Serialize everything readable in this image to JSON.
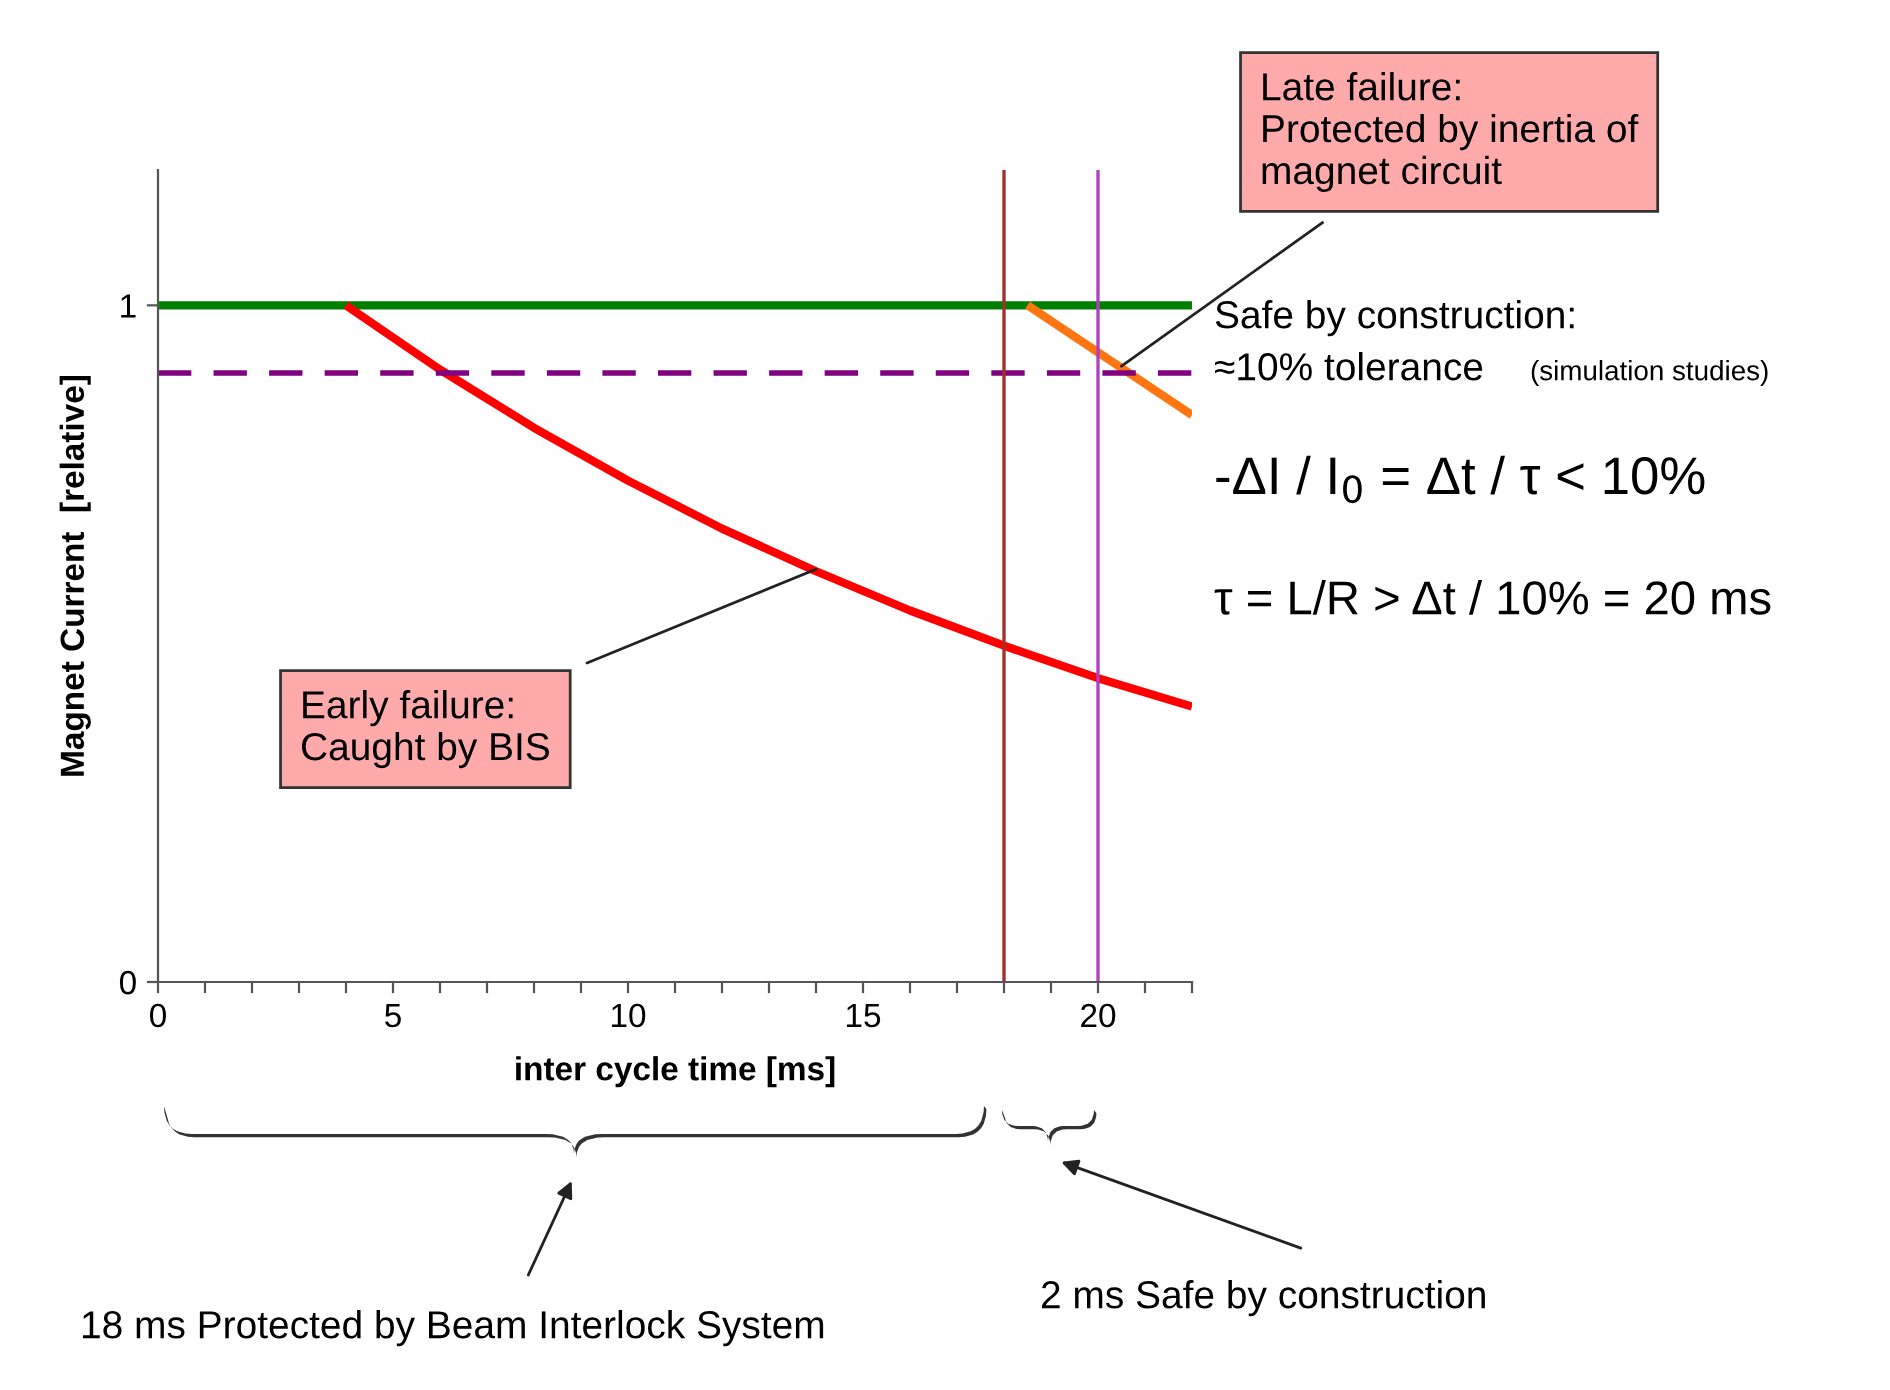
{
  "chart_data": {
    "type": "line",
    "xlabel": "inter cycle time [ms]",
    "ylabel": "Magnet Current  [relative]",
    "series": [
      {
        "color": "#008000",
        "x": [
          0,
          22
        ],
        "values": [
          1,
          1
        ]
      },
      {
        "color": "#ff0000",
        "x": [
          4,
          6,
          8,
          10,
          12,
          14,
          16,
          18,
          20,
          22
        ],
        "values": [
          1,
          0.905,
          0.819,
          0.741,
          0.67,
          0.607,
          0.549,
          0.497,
          0.449,
          0.407
        ]
      },
      {
        "color": "#ff7510",
        "x": [
          18.5,
          22
        ],
        "values": [
          1,
          0.838
        ]
      }
    ],
    "ref_lines": [
      {
        "axis": "y",
        "value": 0.9,
        "color": "#800080",
        "line_style": "dashed"
      },
      {
        "axis": "x",
        "value": 18,
        "color": "#a0302c",
        "line_style": "solid"
      },
      {
        "axis": "x",
        "value": 20,
        "color": "#b040c0",
        "line_style": "solid"
      }
    ],
    "xlim": [
      0,
      22
    ],
    "ylim": [
      0,
      1.2
    ],
    "xticks": [
      0,
      {
        "value": 1,
        "label": null
      },
      {
        "value": 2,
        "label": null
      },
      {
        "value": 3,
        "label": null
      },
      {
        "value": 4,
        "label": null
      },
      5,
      {
        "value": 6,
        "label": null
      },
      {
        "value": 7,
        "label": null
      },
      {
        "value": 8,
        "label": null
      },
      {
        "value": 9,
        "label": null
      },
      10,
      {
        "value": 11,
        "label": null
      },
      {
        "value": 12,
        "label": null
      },
      {
        "value": 13,
        "label": null
      },
      {
        "value": 14,
        "label": null
      },
      15,
      {
        "value": 16,
        "label": null
      },
      {
        "value": 17,
        "label": null
      },
      {
        "value": 18,
        "label": null
      },
      {
        "value": 19,
        "label": null
      },
      20,
      {
        "value": 21,
        "label": null
      },
      {
        "value": 22,
        "label": null
      }
    ],
    "yticks": [
      0,
      1
    ],
    "grid": false,
    "legend": false,
    "annotations": [
      {
        "text": "Late failure:\nProtected by inertia of\nmagnet circuit",
        "x": 20.5,
        "y": 0.91
      },
      "Safe by construction:",
      "≈10% tolerance",
      "(simulation studies)",
      "-ΔI / I$_{0}$ = Δt / τ < 10%",
      "τ = L/R > Δt / 10% = 20 ms",
      {
        "text": "Early failure:\nCaught by BIS",
        "x": 14,
        "y": 0.61
      },
      "18 ms Protected by Beam Interlock System",
      "2 ms Safe by construction"
    ]
  }
}
